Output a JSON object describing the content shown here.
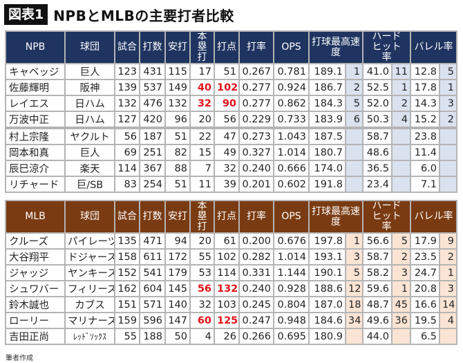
{
  "title": {
    "badge": "図表1",
    "text": "NPBとMLBの主要打者比較"
  },
  "colors": {
    "npb_header": "#1f3460",
    "mlb_header": "#7a3b12",
    "npb_rank_bg": "#dbe2ef",
    "mlb_rank_bg": "#fbe4d4",
    "highlight": "#e0141a"
  },
  "npb": {
    "headers": [
      "NPB",
      "球団",
      "試合",
      "打数",
      "安打",
      "本塁打",
      "打点",
      "打率",
      "OPS",
      "打球最高速度",
      "ハードヒット率",
      "バレル率"
    ],
    "rows": [
      {
        "cells": [
          "キャベッジ",
          "巨人",
          "123",
          "431",
          "115",
          "17",
          "51",
          "0.267",
          "0.781",
          "189.1",
          "1",
          "41.0",
          "11",
          "12.8",
          "5"
        ],
        "red": []
      },
      {
        "cells": [
          "佐藤輝明",
          "阪神",
          "139",
          "537",
          "149",
          "40",
          "102",
          "0.277",
          "0.924",
          "186.7",
          "2",
          "52.5",
          "1",
          "17.8",
          "1"
        ],
        "red": [
          5,
          6
        ]
      },
      {
        "cells": [
          "レイエス",
          "日ハム",
          "132",
          "476",
          "132",
          "32",
          "90",
          "0.277",
          "0.862",
          "184.3",
          "5",
          "52.0",
          "2",
          "14.3",
          "3"
        ],
        "red": [
          5,
          6
        ]
      },
      {
        "cells": [
          "万波中正",
          "日ハム",
          "127",
          "420",
          "96",
          "20",
          "56",
          "0.229",
          "0.733",
          "183.9",
          "6",
          "50.3",
          "4",
          "15.2",
          "2"
        ],
        "red": []
      },
      {
        "cells": [
          "村上宗隆",
          "ヤクルト",
          "56",
          "187",
          "51",
          "22",
          "47",
          "0.273",
          "1.043",
          "187.5",
          "",
          "58.7",
          "",
          "23.8",
          ""
        ],
        "red": []
      },
      {
        "cells": [
          "岡本和真",
          "巨人",
          "69",
          "251",
          "82",
          "15",
          "49",
          "0.327",
          "1.014",
          "180.7",
          "",
          "48.6",
          "",
          "11.4",
          ""
        ],
        "red": []
      },
      {
        "cells": [
          "辰巳涼介",
          "楽天",
          "114",
          "367",
          "88",
          "7",
          "32",
          "0.240",
          "0.666",
          "174.0",
          "",
          "36.5",
          "",
          "6.0",
          ""
        ],
        "red": []
      },
      {
        "cells": [
          "リチャード",
          "巨/SB",
          "83",
          "254",
          "51",
          "11",
          "39",
          "0.201",
          "0.602",
          "191.8",
          "",
          "23.4",
          "",
          "7.1",
          ""
        ],
        "red": []
      }
    ]
  },
  "mlb": {
    "headers": [
      "MLB",
      "球団",
      "試合",
      "打数",
      "安打",
      "本塁打",
      "打点",
      "打率",
      "OPS",
      "打球最高速度",
      "ハードヒット率",
      "バレル率"
    ],
    "rows": [
      {
        "cells": [
          "クルーズ",
          "パイレーツ",
          "135",
          "471",
          "94",
          "20",
          "61",
          "0.200",
          "0.676",
          "197.8",
          "1",
          "56.6",
          "5",
          "17.9",
          "9"
        ],
        "red": []
      },
      {
        "cells": [
          "大谷翔平",
          "ドジャース",
          "158",
          "611",
          "172",
          "55",
          "102",
          "0.282",
          "1.014",
          "193.1",
          "3",
          "58.7",
          "2",
          "23.5",
          "2"
        ],
        "red": []
      },
      {
        "cells": [
          "ジャッジ",
          "ヤンキース",
          "152",
          "541",
          "179",
          "53",
          "114",
          "0.331",
          "1.144",
          "190.1",
          "5",
          "58.2",
          "3",
          "24.7",
          "1"
        ],
        "red": []
      },
      {
        "cells": [
          "シュワバー",
          "フィリーズ",
          "162",
          "604",
          "145",
          "56",
          "132",
          "0.240",
          "0.928",
          "188.6",
          "12",
          "59.6",
          "1",
          "20.8",
          "3"
        ],
        "red": [
          5,
          6
        ]
      },
      {
        "cells": [
          "鈴木誠也",
          "カブス",
          "151",
          "571",
          "140",
          "32",
          "103",
          "0.245",
          "0.804",
          "187.0",
          "18",
          "48.7",
          "45",
          "16.6",
          "14"
        ],
        "red": []
      },
      {
        "cells": [
          "ローリー",
          "マリナーズ",
          "159",
          "596",
          "147",
          "60",
          "125",
          "0.247",
          "0.948",
          "184.6",
          "34",
          "49.6",
          "36",
          "19.5",
          "4"
        ],
        "red": [
          5,
          6
        ]
      },
      {
        "cells": [
          "吉田正尚",
          "ﾚｯﾄﾞｿｯｸｽ",
          "55",
          "188",
          "50",
          "4",
          "26",
          "0.266",
          "0.695",
          "180.9",
          "",
          "44.0",
          "",
          "6.5",
          ""
        ],
        "red": []
      }
    ]
  },
  "footer": "筆者作成"
}
